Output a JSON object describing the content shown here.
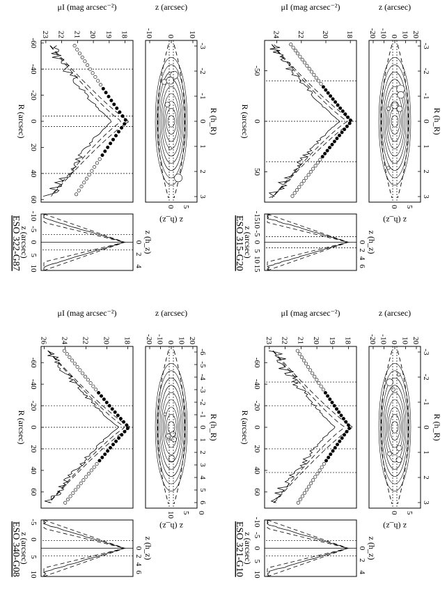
{
  "chart_data": [
    {
      "type": "figure-panel",
      "title": "ESO 315-G20",
      "contour": {
        "xlabel_top": "R (h_R)",
        "ylabel": "z (arcsec)",
        "top_ticks": [
          "-3",
          "-2",
          "-1",
          "0",
          "1",
          "2",
          "3"
        ],
        "y_ticks": [
          "-20",
          "-10",
          "0",
          "10",
          "20"
        ],
        "xlim_arcsec": [
          -80,
          80
        ],
        "ylim_arcsec": [
          -20,
          20
        ]
      },
      "radial": {
        "xlabel": "R (arcsec)",
        "ylabel": "μI (mag arcsec⁻²)",
        "x_ticks": [
          "-50",
          "0",
          "50"
        ],
        "x_tick_values": [
          -50,
          0,
          50
        ],
        "y_ticks": [
          "24",
          "22",
          "20",
          "18"
        ],
        "y_tick_values": [
          24,
          22,
          20,
          18
        ],
        "xlim": [
          -80,
          80
        ],
        "ylim": [
          25,
          17.5
        ],
        "vlines": [
          -40,
          0,
          40
        ]
      },
      "vertical": {
        "xlabel": "z (arcsec)",
        "xlabel_top": "z (h_z)",
        "x_ticks": [
          "-15",
          "10",
          "-5",
          "0",
          "5",
          "10",
          "15"
        ],
        "top_ticks": [
          "0",
          "2",
          "4",
          "6"
        ],
        "zlim": [
          -15,
          15
        ],
        "vlines": [
          -3,
          0,
          3
        ]
      },
      "right_z_ticks": [
        "0",
        "5"
      ],
      "right_z_label": "z (h_z)"
    },
    {
      "type": "figure-panel",
      "title": "ESO 321-G10",
      "contour": {
        "xlabel_top": "R (h_R)",
        "ylabel": "z (arcsec)",
        "top_ticks": [
          "-3",
          "-2",
          "-1",
          "0",
          "1",
          "2",
          "3"
        ],
        "y_ticks": [
          "-20",
          "-10",
          "0",
          "10",
          "20"
        ],
        "xlim_arcsec": [
          -75,
          75
        ],
        "ylim_arcsec": [
          -20,
          20
        ]
      },
      "radial": {
        "xlabel": "R (arcsec)",
        "ylabel": "μI (mag arcsec⁻²)",
        "x_ticks": [
          "-60",
          "-40",
          "-20",
          "0",
          "20",
          "40",
          "60"
        ],
        "x_tick_values": [
          -60,
          -40,
          -20,
          0,
          20,
          40,
          60
        ],
        "y_ticks": [
          "23",
          "22",
          "21",
          "20",
          "19",
          "18"
        ],
        "y_tick_values": [
          23,
          22,
          21,
          20,
          19,
          18
        ],
        "xlim": [
          -75,
          75
        ],
        "ylim": [
          23.3,
          17.5
        ],
        "vlines": [
          -42,
          -20,
          20,
          42
        ]
      },
      "vertical": {
        "xlabel": "z (arcsec)",
        "xlabel_top": "z (h_z)",
        "x_ticks": [
          "-10",
          "-5",
          "0",
          "5",
          "10"
        ],
        "top_ticks": [
          "0",
          "2",
          "4"
        ],
        "zlim": [
          -11,
          11
        ],
        "vlines": [
          -3,
          0,
          3
        ]
      },
      "right_z_ticks": [
        "0",
        "5"
      ],
      "right_z_label": "z (h_z)"
    },
    {
      "type": "figure-panel",
      "title": "ESO 322-G87",
      "contour": {
        "xlabel_top": "R (h_R)",
        "ylabel": "z (arcsec)",
        "top_ticks": [
          "-3",
          "-2",
          "-1",
          "0",
          "1",
          "2",
          "3"
        ],
        "y_ticks": [
          "-10",
          "0",
          "10"
        ],
        "xlim_arcsec": [
          -62,
          62
        ],
        "ylim_arcsec": [
          -12,
          12
        ]
      },
      "radial": {
        "xlabel": "R (arcsec)",
        "ylabel": "μI (mag arcsec⁻²)",
        "x_ticks": [
          "-60",
          "-40",
          "-20",
          "0",
          "20",
          "40",
          "60"
        ],
        "x_tick_values": [
          -60,
          -40,
          -20,
          0,
          20,
          40,
          60
        ],
        "y_ticks": [
          "23",
          "22",
          "21",
          "20",
          "19",
          "18"
        ],
        "y_tick_values": [
          23,
          22,
          21,
          20,
          19,
          18
        ],
        "xlim": [
          -62,
          62
        ],
        "ylim": [
          23.3,
          17.5
        ],
        "vlines": [
          -40,
          -4,
          4,
          40
        ]
      },
      "vertical": {
        "xlabel": "z (arcsec)",
        "xlabel_top": "z (h_z)",
        "x_ticks": [
          "-10",
          "-5",
          "0",
          "5",
          "10"
        ],
        "top_ticks": [
          "0",
          "2",
          "4"
        ],
        "zlim": [
          -11,
          11
        ],
        "vlines": [
          -3,
          0,
          3
        ]
      },
      "right_z_ticks": [
        "0",
        "5"
      ],
      "right_z_label": "z (h_z)"
    },
    {
      "type": "figure-panel",
      "title": "ESO 340-G08",
      "contour": {
        "xlabel_top": "R (h_R)",
        "ylabel": "z (arcsec)",
        "top_ticks": [
          "-6",
          "-5",
          "-4",
          "-3",
          "-2",
          "-1",
          "0",
          "1",
          "2",
          "3",
          "4",
          "5",
          "6"
        ],
        "y_ticks": [
          "-20",
          "-10",
          "0",
          "10",
          "20"
        ],
        "xlim_arcsec": [
          -75,
          75
        ],
        "ylim_arcsec": [
          -20,
          20
        ]
      },
      "radial": {
        "xlabel": "R (arcsec)",
        "ylabel": "μI (mag arcsec⁻²)",
        "x_ticks": [
          "-60",
          "-40",
          "-20",
          "0",
          "20",
          "40",
          "60"
        ],
        "x_tick_values": [
          -60,
          -40,
          -20,
          0,
          20,
          40,
          60
        ],
        "y_ticks": [
          "26",
          "24",
          "22",
          "20",
          "18"
        ],
        "y_tick_values": [
          26,
          24,
          22,
          20,
          18
        ],
        "xlim": [
          -75,
          75
        ],
        "ylim": [
          26.3,
          17.5
        ],
        "vlines": [
          -20,
          0,
          20
        ]
      },
      "vertical": {
        "xlabel": "z (arcsec)",
        "xlabel_top": "z (h_z)",
        "x_ticks": [
          "-5",
          "0",
          "5",
          "10"
        ],
        "top_ticks": [
          "0",
          "2",
          "4",
          "6"
        ],
        "zlim": [
          -11,
          11
        ],
        "vlines": [
          -3,
          0,
          3
        ]
      },
      "right_z_ticks": [
        "10",
        "5",
        "0"
      ],
      "right_z_label": "z (h_z)"
    }
  ]
}
